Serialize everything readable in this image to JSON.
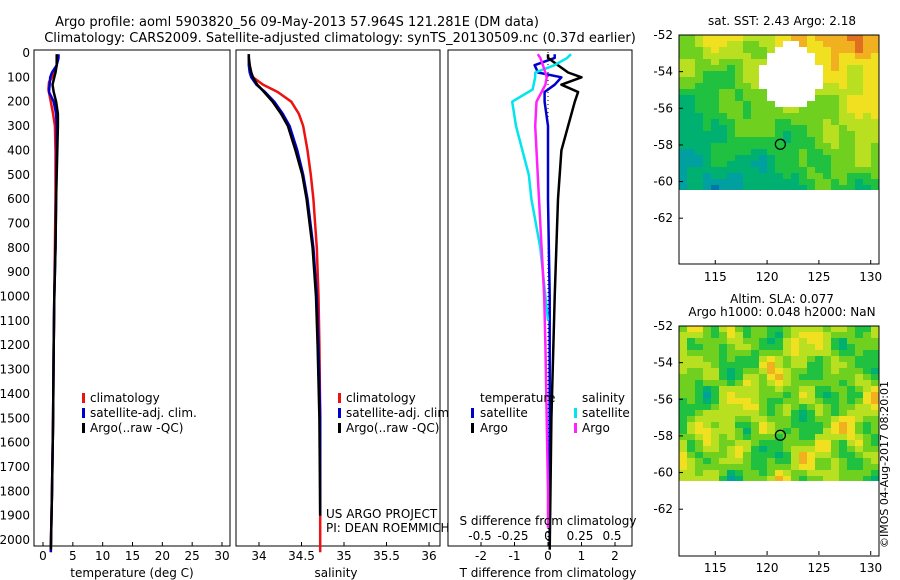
{
  "title": {
    "line1": "Argo profile: aoml 5903820_56 09-May-2013 57.964S 121.281E (DM data)",
    "line2": "Climatology: CARS2009. Satellite-adjusted climatology: synTS_20130509.nc (0.37d earlier)"
  },
  "credits": {
    "project": "US ARGO PROJECT",
    "pi": "PI: DEAN ROEMMICH",
    "imos": "©IMOS 04-Aug-2017 08:20:01"
  },
  "colors": {
    "climatology": "#ee1111",
    "satellite": "#0000cc",
    "argo": "#000000",
    "s_satellite": "#00e5ee",
    "s_argo": "#ff22ff"
  },
  "chart_data": [
    {
      "type": "line",
      "name": "temperature",
      "xlabel": "temperature (deg C)",
      "ylim": [
        0,
        2080
      ],
      "xlim": [
        -1.5,
        31
      ],
      "xticks": [
        0,
        5,
        10,
        15,
        20,
        25,
        30
      ],
      "yticks": [
        0,
        100,
        200,
        300,
        400,
        500,
        600,
        700,
        800,
        900,
        1000,
        1100,
        1200,
        1300,
        1400,
        1500,
        1600,
        1700,
        1800,
        1900,
        2000
      ],
      "legend": [
        "climatology",
        "satellite-adj. clim.",
        "Argo(..raw -QC)"
      ],
      "series": [
        {
          "name": "climatology",
          "depth": [
            5,
            20,
            50,
            80,
            100,
            120,
            150,
            200,
            250,
            300,
            400,
            600,
            800,
            1000,
            1200,
            1500,
            1800,
            2050
          ],
          "values": [
            2.4,
            2.4,
            2.3,
            1.9,
            1.5,
            1.0,
            0.9,
            1.3,
            1.7,
            2.0,
            2.1,
            2.1,
            2.0,
            1.9,
            1.8,
            1.7,
            1.5,
            1.3
          ]
        },
        {
          "name": "satellite",
          "depth": [
            5,
            20,
            50,
            80,
            100,
            130,
            160,
            200,
            250,
            300,
            400,
            600,
            800,
            1000,
            1200,
            1500,
            1800,
            2050
          ],
          "values": [
            2.6,
            2.6,
            2.3,
            1.5,
            1.2,
            1.1,
            1.0,
            1.8,
            2.2,
            2.3,
            2.3,
            2.2,
            2.1,
            1.9,
            1.8,
            1.7,
            1.5,
            1.3
          ]
        },
        {
          "name": "argo",
          "depth": [
            5,
            20,
            50,
            80,
            100,
            130,
            160,
            200,
            250,
            300,
            400,
            600,
            800,
            1000,
            1200,
            1500,
            1800,
            2040
          ],
          "values": [
            2.3,
            2.3,
            2.3,
            2.1,
            1.9,
            1.6,
            1.8,
            2.2,
            2.5,
            2.5,
            2.4,
            2.2,
            2.1,
            1.9,
            1.8,
            1.7,
            1.5,
            1.3
          ]
        }
      ]
    },
    {
      "type": "line",
      "name": "salinity",
      "xlabel": "salinity",
      "ylim": [
        0,
        2080
      ],
      "xlim": [
        33.8,
        36.1
      ],
      "xticks": [
        34,
        34.5,
        35,
        35.5,
        36
      ],
      "legend": [
        "climatology",
        "satellite-adj. clim.",
        "Argo(..raw -QC)"
      ],
      "series": [
        {
          "name": "climatology",
          "depth": [
            5,
            20,
            50,
            80,
            100,
            130,
            160,
            200,
            250,
            300,
            400,
            500,
            600,
            800,
            1000,
            1200,
            1500,
            2050
          ],
          "values": [
            33.88,
            33.88,
            33.89,
            33.9,
            33.93,
            34.05,
            34.22,
            34.38,
            34.47,
            34.52,
            34.57,
            34.61,
            34.64,
            34.68,
            34.7,
            34.71,
            34.72,
            34.72
          ]
        },
        {
          "name": "satellite",
          "depth": [
            5,
            20,
            50,
            80,
            100,
            130,
            160,
            200,
            250,
            300,
            400,
            500,
            600,
            800,
            1000,
            1200,
            1500,
            1900
          ],
          "values": [
            33.88,
            33.88,
            33.88,
            33.89,
            33.91,
            33.97,
            34.07,
            34.18,
            34.28,
            34.36,
            34.45,
            34.52,
            34.57,
            34.64,
            34.68,
            34.7,
            34.72,
            34.72
          ]
        },
        {
          "name": "argo",
          "depth": [
            5,
            20,
            50,
            80,
            100,
            130,
            160,
            200,
            250,
            300,
            400,
            500,
            600,
            800,
            1000,
            1200,
            1500,
            1900
          ],
          "values": [
            33.88,
            33.88,
            33.89,
            33.91,
            33.93,
            33.98,
            34.06,
            34.16,
            34.26,
            34.34,
            34.43,
            34.51,
            34.56,
            34.63,
            34.67,
            34.69,
            34.71,
            34.72
          ]
        }
      ]
    },
    {
      "type": "line",
      "name": "differences",
      "xlabel": "T difference from climatology",
      "xlim": [
        -2.8,
        2.5
      ],
      "xticks": [
        -2,
        -1,
        0,
        1,
        2
      ],
      "s_axis_label": "S difference from climatology",
      "s_ticks": [
        "-0.5",
        "-0.25",
        "0",
        "0.25",
        "0.5"
      ],
      "legend_headers": [
        "temperature",
        "salinity"
      ],
      "legend": [
        "satellite",
        "Argo",
        "satellite",
        "Argo"
      ],
      "series": [
        {
          "name": "T satellite",
          "depth": [
            5,
            20,
            50,
            80,
            100,
            130,
            160,
            200,
            300,
            400,
            600,
            1000,
            1500,
            2000
          ],
          "values": [
            0.2,
            0.2,
            -0.4,
            -0.3,
            0.4,
            0.2,
            -0.1,
            -0.1,
            0.0,
            0.0,
            0.0,
            0.05,
            0.05,
            0.05
          ]
        },
        {
          "name": "T argo",
          "depth": [
            5,
            20,
            50,
            80,
            100,
            130,
            160,
            200,
            300,
            400,
            600,
            1000,
            1500,
            2040
          ],
          "values": [
            0.0,
            0.0,
            0.3,
            0.6,
            1.0,
            0.4,
            0.9,
            0.8,
            0.6,
            0.4,
            0.3,
            0.2,
            0.1,
            0.05
          ]
        },
        {
          "name": "S satellite",
          "depth": [
            5,
            20,
            50,
            80,
            100,
            150,
            200,
            300,
            400,
            500,
            600,
            800,
            1000,
            1100
          ],
          "values": [
            0.18,
            0.15,
            0.05,
            -0.1,
            -0.1,
            -0.12,
            -0.28,
            -0.25,
            -0.2,
            -0.15,
            -0.13,
            -0.06,
            -0.02,
            0.0
          ]
        },
        {
          "name": "S argo",
          "depth": [
            5,
            20,
            50,
            80,
            100,
            130,
            160,
            200,
            300,
            400,
            600,
            800,
            1000,
            1200,
            1500,
            1800,
            1950
          ],
          "values": [
            -0.08,
            -0.06,
            -0.04,
            -0.02,
            -0.01,
            -0.02,
            -0.05,
            -0.09,
            -0.1,
            -0.09,
            -0.07,
            -0.05,
            -0.03,
            -0.02,
            -0.01,
            0.0,
            0.0
          ]
        }
      ]
    },
    {
      "type": "heatmap",
      "name": "sst-map",
      "title": "sat. SST: 2.43  Argo: 2.18",
      "xlim": [
        111.5,
        130.8
      ],
      "ylim": [
        -64.5,
        -52
      ],
      "xticks": [
        115,
        120,
        125,
        130
      ],
      "yticks": [
        -52,
        -54,
        -56,
        -58,
        -60,
        -62
      ],
      "marker": {
        "lon": 121.281,
        "lat": -57.964
      }
    },
    {
      "type": "heatmap",
      "name": "sla-map",
      "title": "Altim. SLA: 0.077",
      "subtitle": "Argo h1000: 0.048 h2000: NaN",
      "xlim": [
        111.5,
        130.8
      ],
      "ylim": [
        -64.5,
        -52
      ],
      "xticks": [
        115,
        120,
        125,
        130
      ],
      "yticks": [
        -52,
        -54,
        -56,
        -58,
        -60,
        -62
      ],
      "marker": {
        "lon": 121.281,
        "lat": -57.964
      }
    }
  ]
}
